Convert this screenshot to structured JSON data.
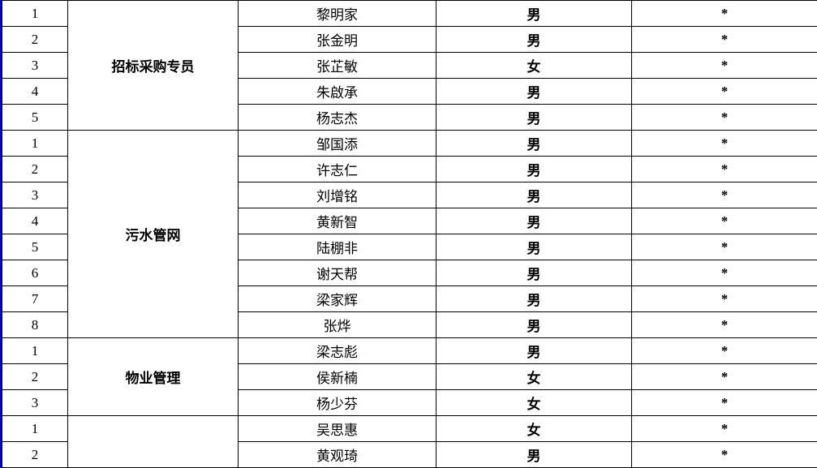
{
  "colors": {
    "outer_border": "#0000d6",
    "grid": "#000000",
    "background": "#ffffff",
    "text": "#000000"
  },
  "table": {
    "masked_symbol": "*",
    "groups": [
      {
        "position": "招标采购专员",
        "members": [
          {
            "no": "1",
            "name": "黎明家",
            "gender": "男",
            "masked": "*"
          },
          {
            "no": "2",
            "name": "张金明",
            "gender": "男",
            "masked": "*"
          },
          {
            "no": "3",
            "name": "张芷敏",
            "gender": "女",
            "masked": "*"
          },
          {
            "no": "4",
            "name": "朱啟承",
            "gender": "男",
            "masked": "*"
          },
          {
            "no": "5",
            "name": "杨志杰",
            "gender": "男",
            "masked": "*"
          }
        ]
      },
      {
        "position": "污水管网",
        "members": [
          {
            "no": "1",
            "name": "邹国添",
            "gender": "男",
            "masked": "*"
          },
          {
            "no": "2",
            "name": "许志仁",
            "gender": "男",
            "masked": "*"
          },
          {
            "no": "3",
            "name": "刘增铭",
            "gender": "男",
            "masked": "*"
          },
          {
            "no": "4",
            "name": "黄新智",
            "gender": "男",
            "masked": "*"
          },
          {
            "no": "5",
            "name": "陆棚非",
            "gender": "男",
            "masked": "*"
          },
          {
            "no": "6",
            "name": "谢天帮",
            "gender": "男",
            "masked": "*"
          },
          {
            "no": "7",
            "name": "梁家辉",
            "gender": "男",
            "masked": "*"
          },
          {
            "no": "8",
            "name": "张烨",
            "gender": "男",
            "masked": "*"
          }
        ]
      },
      {
        "position": "物业管理",
        "members": [
          {
            "no": "1",
            "name": "梁志彪",
            "gender": "男",
            "masked": "*"
          },
          {
            "no": "2",
            "name": "侯新楠",
            "gender": "女",
            "masked": "*"
          },
          {
            "no": "3",
            "name": "杨少芬",
            "gender": "女",
            "masked": "*"
          }
        ]
      },
      {
        "position": "",
        "members": [
          {
            "no": "1",
            "name": "吴思惠",
            "gender": "女",
            "masked": "*"
          },
          {
            "no": "2",
            "name": "黄观琦",
            "gender": "男",
            "masked": "*"
          }
        ]
      }
    ]
  }
}
